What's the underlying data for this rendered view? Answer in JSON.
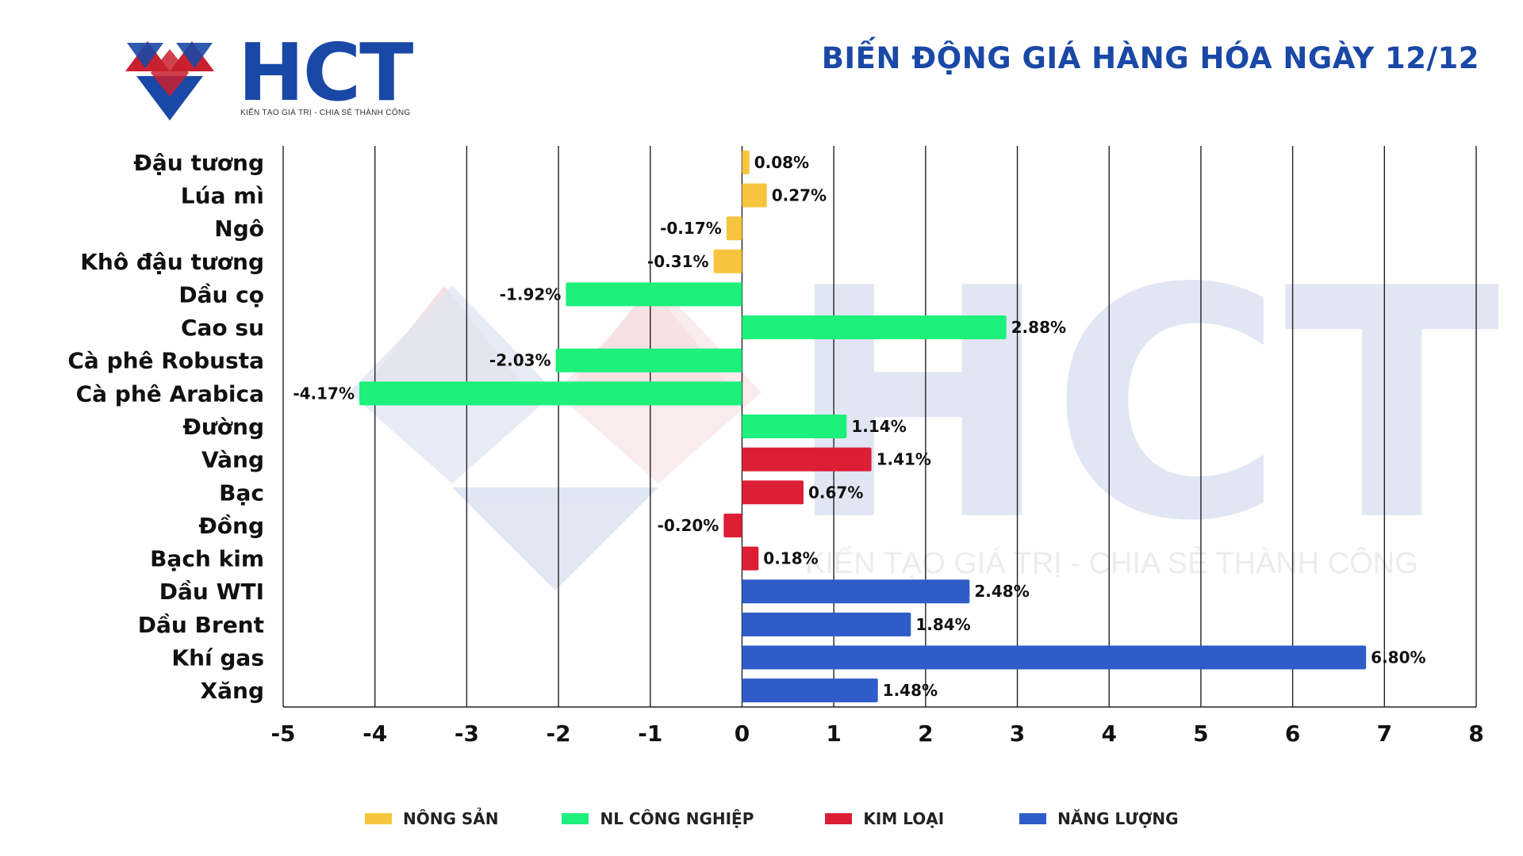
{
  "header": {
    "logo_text": "HCT",
    "logo_tagline": "KIẾN TẠO GIÁ TRỊ - CHIA SẺ THÀNH CÔNG",
    "title": "BIẾN ĐỘNG GIÁ HÀNG HÓA NGÀY 12/12"
  },
  "watermark": {
    "text": "HCT",
    "tagline": "KIẾN TẠO GIÁ TRỊ - CHIA SẺ THÀNH CÔNG"
  },
  "colors": {
    "brand_blue": "#1a48a6",
    "brand_red": "#c8202e",
    "nong_san": "#f7c43d",
    "nl_cong_nghiep": "#1ef07c",
    "kim_loai": "#dc1f35",
    "nang_luong": "#2f5cc8"
  },
  "chart_data": {
    "type": "bar",
    "orientation": "horizontal",
    "title": "BIẾN ĐỘNG GIÁ HÀNG HÓA NGÀY 12/12",
    "xlim": [
      -5,
      8
    ],
    "x_ticks": [
      "-5",
      "-4",
      "-3",
      "-2",
      "-1",
      "0",
      "1",
      "2",
      "3",
      "4",
      "5",
      "6",
      "7",
      "8"
    ],
    "grid": "vertical",
    "legend_position": "bottom",
    "groups": [
      {
        "name": "NÔNG SẢN",
        "color": "#f7c43d"
      },
      {
        "name": "NL CÔNG NGHIỆP",
        "color": "#1ef07c"
      },
      {
        "name": "KIM LOẠI",
        "color": "#dc1f35"
      },
      {
        "name": "NĂNG LƯỢNG",
        "color": "#2f5cc8"
      }
    ],
    "bars": [
      {
        "category": "Đậu tương",
        "value": 0.08,
        "label": "0.08%",
        "group": 0
      },
      {
        "category": "Lúa mì",
        "value": 0.27,
        "label": "0.27%",
        "group": 0
      },
      {
        "category": "Ngô",
        "value": -0.17,
        "label": "-0.17%",
        "group": 0
      },
      {
        "category": "Khô đậu tương",
        "value": -0.31,
        "label": "-0.31%",
        "group": 0
      },
      {
        "category": "Dầu cọ",
        "value": -1.92,
        "label": "-1.92%",
        "group": 1
      },
      {
        "category": "Cao su",
        "value": 2.88,
        "label": "2.88%",
        "group": 1
      },
      {
        "category": "Cà phê Robusta",
        "value": -2.03,
        "label": "-2.03%",
        "group": 1
      },
      {
        "category": "Cà phê Arabica",
        "value": -4.17,
        "label": "-4.17%",
        "group": 1
      },
      {
        "category": "Đường",
        "value": 1.14,
        "label": "1.14%",
        "group": 1
      },
      {
        "category": "Vàng",
        "value": 1.41,
        "label": "1.41%",
        "group": 2
      },
      {
        "category": "Bạc",
        "value": 0.67,
        "label": "0.67%",
        "group": 2
      },
      {
        "category": "Đồng",
        "value": -0.2,
        "label": "-0.20%",
        "group": 2
      },
      {
        "category": "Bạch kim",
        "value": 0.18,
        "label": "0.18%",
        "group": 2
      },
      {
        "category": "Dầu WTI",
        "value": 2.48,
        "label": "2.48%",
        "group": 3
      },
      {
        "category": "Dầu Brent",
        "value": 1.84,
        "label": "1.84%",
        "group": 3
      },
      {
        "category": "Khí gas",
        "value": 6.8,
        "label": "6.80%",
        "group": 3
      },
      {
        "category": "Xăng",
        "value": 1.48,
        "label": "1.48%",
        "group": 3
      }
    ]
  }
}
